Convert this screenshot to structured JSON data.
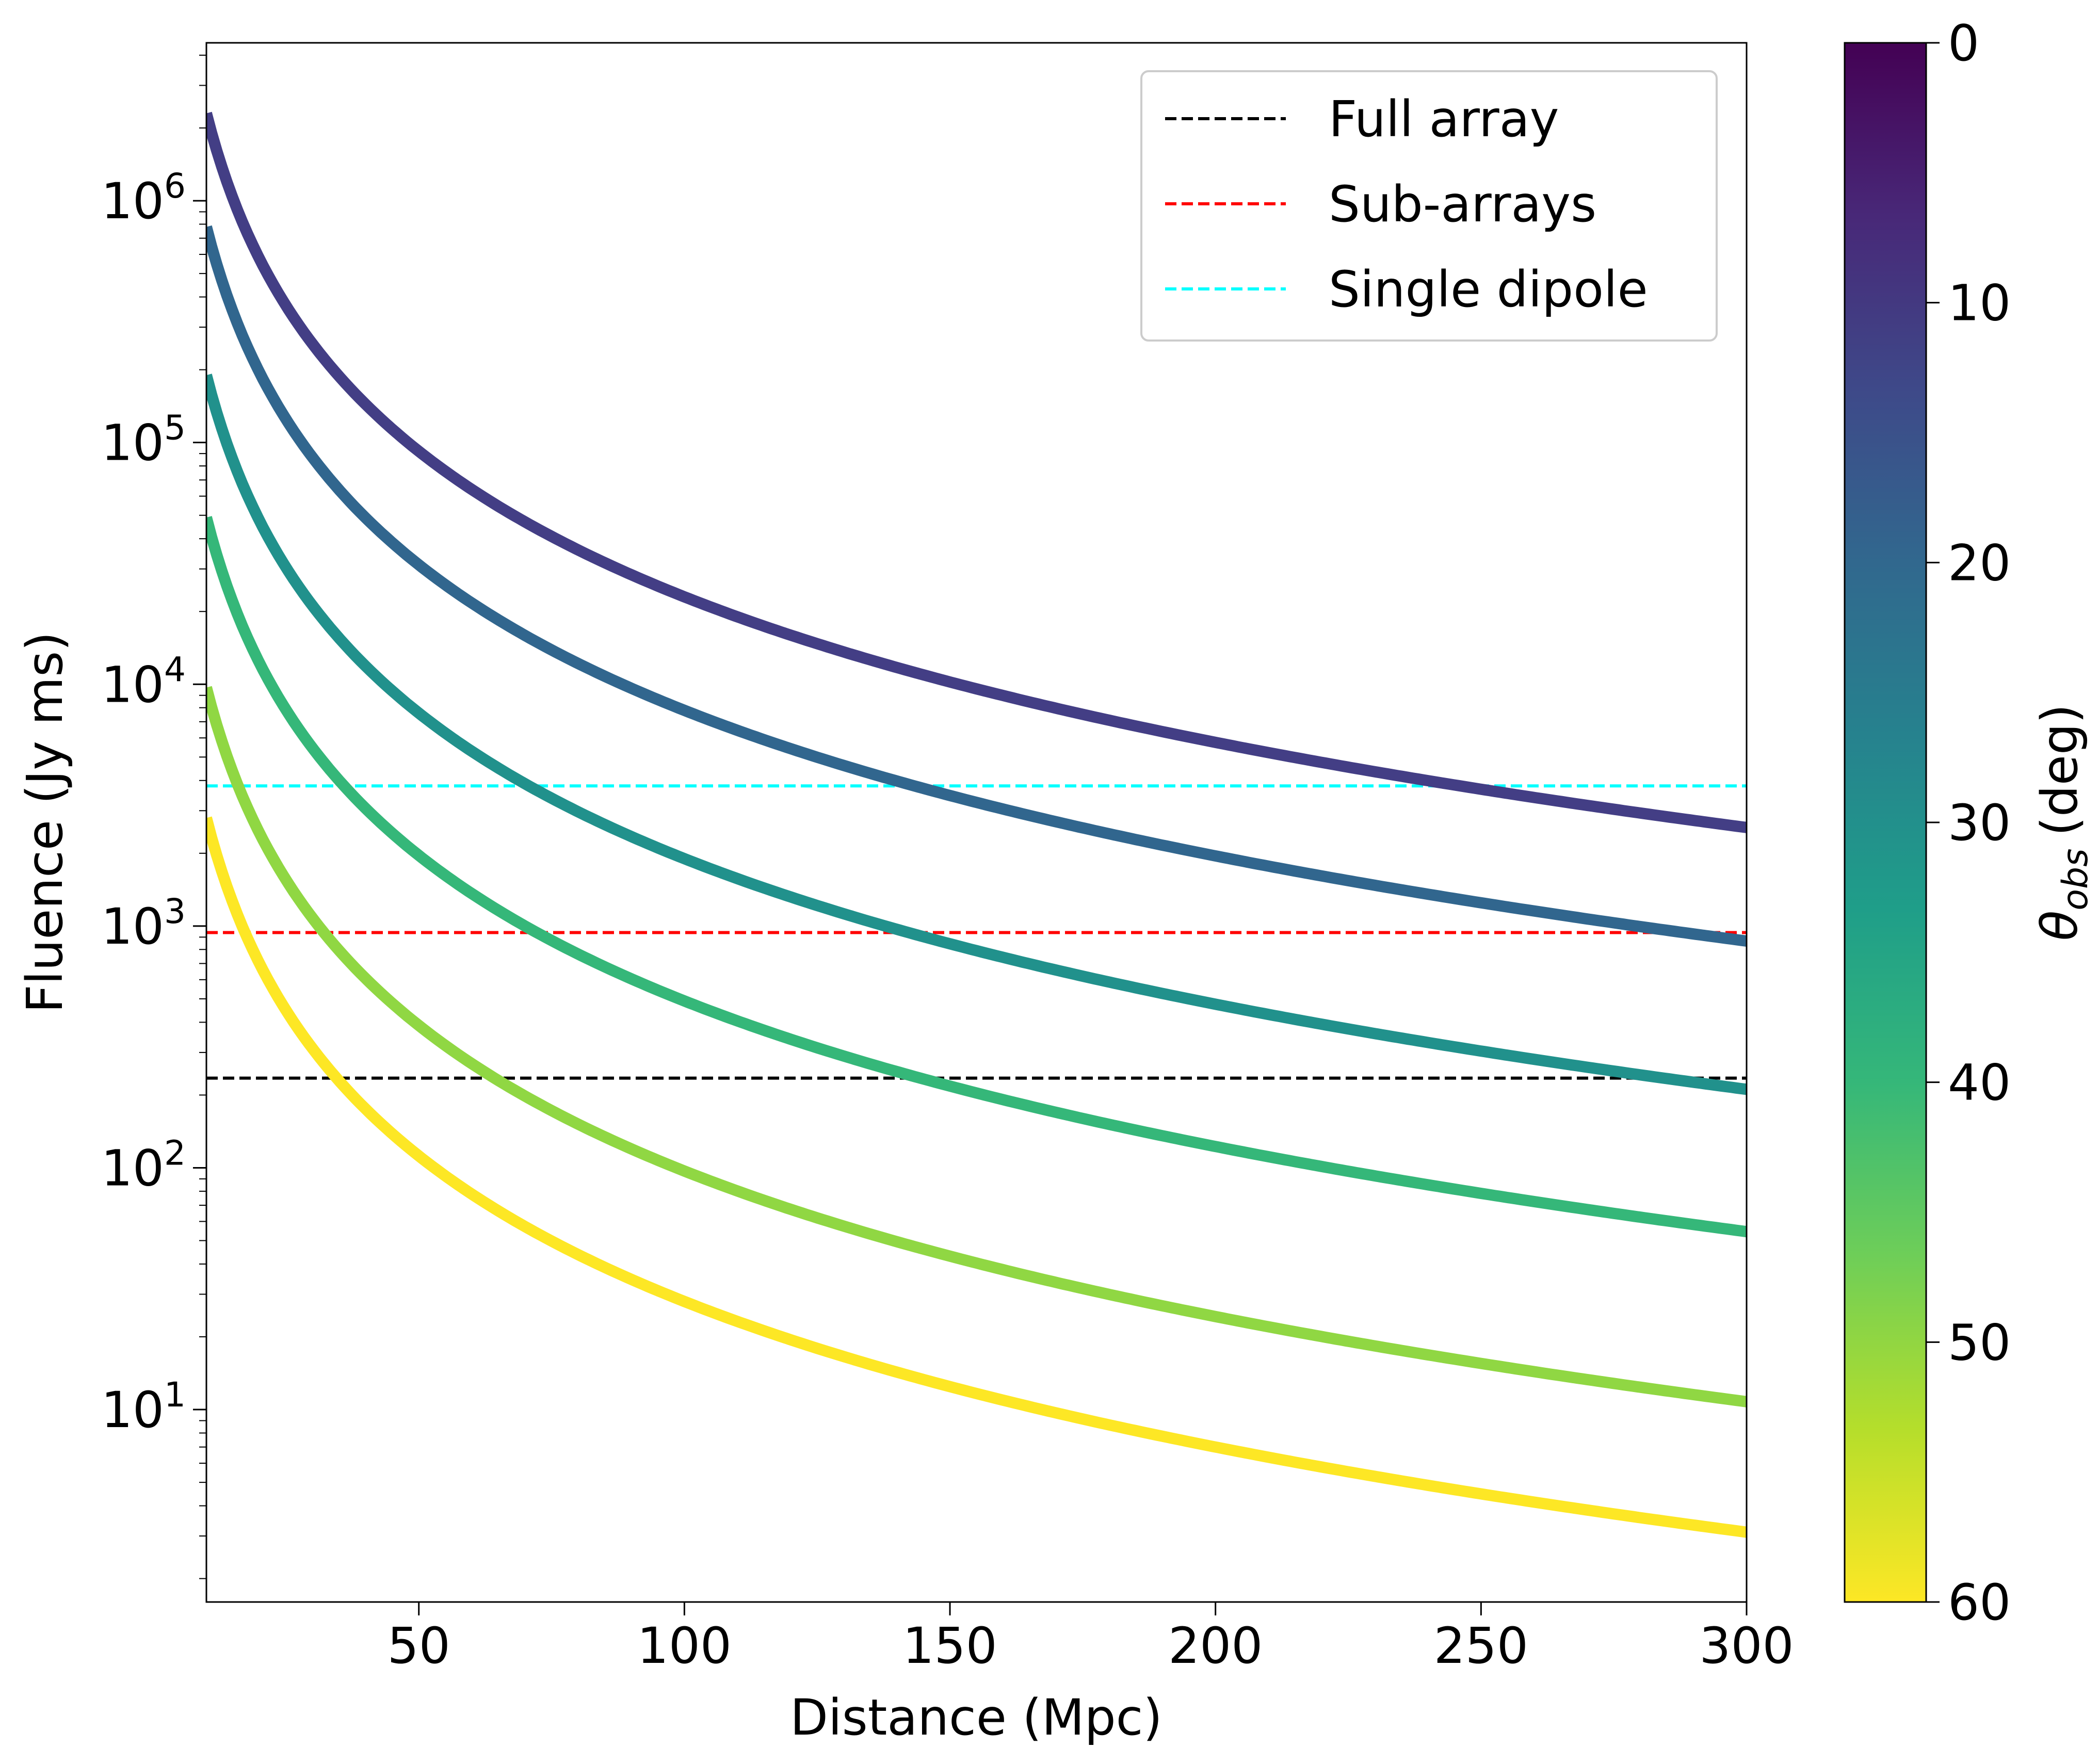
{
  "chart_data": {
    "type": "line",
    "title": "",
    "xlabel": "Distance (Mpc)",
    "ylabel": "Fluence (Jy ms)",
    "xscale": "linear",
    "yscale": "log",
    "xlim": [
      10,
      300
    ],
    "ylim": [
      1.6,
      4500000
    ],
    "xticks": [
      50,
      100,
      150,
      200,
      250,
      300
    ],
    "yticks": [
      {
        "value": 10,
        "base": "10",
        "exp": "1"
      },
      {
        "value": 100,
        "base": "10",
        "exp": "2"
      },
      {
        "value": 1000,
        "base": "10",
        "exp": "3"
      },
      {
        "value": 10000,
        "base": "10",
        "exp": "4"
      },
      {
        "value": 100000,
        "base": "10",
        "exp": "5"
      },
      {
        "value": 1000000,
        "base": "10",
        "exp": "6"
      }
    ],
    "model": "fluence = k / distance^2",
    "series": [
      {
        "name": "theta_obs = 10 deg",
        "theta": 10,
        "color": "#433e85",
        "x": [
          10,
          20,
          30,
          50,
          100,
          150,
          200,
          250,
          300
        ],
        "values": [
          2300000,
          580000,
          258000,
          93000,
          23200,
          10300,
          5800,
          3700,
          2560
        ]
      },
      {
        "name": "theta_obs = 20 deg",
        "theta": 20,
        "color": "#31668e",
        "x": [
          10,
          20,
          30,
          50,
          100,
          150,
          200,
          250,
          300
        ],
        "values": [
          780000,
          195000,
          86700,
          31200,
          7800,
          3470,
          1950,
          1250,
          870
        ]
      },
      {
        "name": "theta_obs = 30 deg",
        "theta": 30,
        "color": "#21918c",
        "x": [
          10,
          20,
          30,
          50,
          100,
          150,
          200,
          250,
          300
        ],
        "values": [
          190000,
          47500,
          21100,
          7600,
          1900,
          844,
          475,
          304,
          211
        ]
      },
      {
        "name": "theta_obs = 40 deg",
        "theta": 40,
        "color": "#35b779",
        "x": [
          10,
          20,
          30,
          50,
          100,
          150,
          200,
          250,
          300
        ],
        "values": [
          49000,
          12250,
          5440,
          1960,
          490,
          218,
          122,
          78,
          54
        ]
      },
      {
        "name": "theta_obs = 50 deg",
        "theta": 50,
        "color": "#90d743",
        "x": [
          10,
          20,
          30,
          50,
          100,
          150,
          200,
          250,
          300
        ],
        "values": [
          9700,
          2425,
          1078,
          388,
          97,
          43,
          24,
          15.5,
          10.8
        ]
      },
      {
        "name": "theta_obs = 60 deg",
        "theta": 60,
        "color": "#fde725",
        "x": [
          10,
          20,
          30,
          50,
          100,
          150,
          200,
          250,
          300
        ],
        "values": [
          2800,
          700,
          311,
          112,
          28,
          12.4,
          7,
          4.5,
          3.1
        ]
      }
    ],
    "thresholds": [
      {
        "name": "Full array",
        "value": 235,
        "color": "#000000"
      },
      {
        "name": "Sub-arrays",
        "value": 940,
        "color": "#ff0000"
      },
      {
        "name": "Single dipole",
        "value": 3800,
        "color": "#00ffff"
      }
    ],
    "legend": {
      "position": "top-right",
      "entries": [
        "Full array",
        "Sub-arrays",
        "Single dipole"
      ]
    },
    "colorbar": {
      "label_symbol": "θ",
      "label_sub": "obs",
      "label_unit": "(deg)",
      "min": 0,
      "max": 60,
      "ticks": [
        0,
        10,
        20,
        30,
        40,
        50,
        60
      ],
      "orientation": "vertical-reversed",
      "colormap": "viridis",
      "stops": [
        "#440154",
        "#482878",
        "#3e4989",
        "#31688e",
        "#26828e",
        "#1f9e89",
        "#35b779",
        "#6ece58",
        "#b5de2b",
        "#fde725"
      ]
    }
  }
}
